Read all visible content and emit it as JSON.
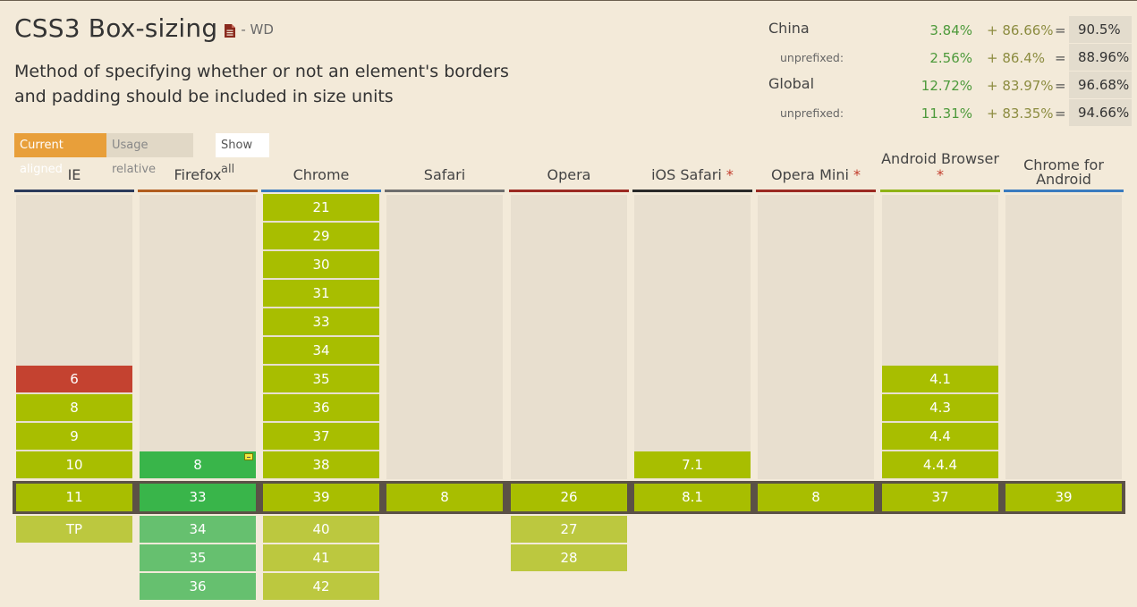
{
  "header": {
    "title": "CSS3 Box-sizing",
    "doc_icon": "document-icon",
    "status": "- WD",
    "description": "Method of specifying whether or not an element's borders and padding should be included in size units"
  },
  "stats": {
    "china": {
      "label": "China",
      "a": "3.84%",
      "b": "+ 86.66%",
      "eq": "=",
      "total": "90.5%"
    },
    "china_unprefixed": {
      "label": "unprefixed:",
      "a": "2.56%",
      "b": "+ 86.4%",
      "eq": "=",
      "total": "88.96%"
    },
    "global": {
      "label": "Global",
      "a": "12.72%",
      "b": "+ 83.97%",
      "eq": "=",
      "total": "96.68%"
    },
    "global_unprefixed": {
      "label": "unprefixed:",
      "a": "11.31%",
      "b": "+ 83.35%",
      "eq": "=",
      "total": "94.66%"
    }
  },
  "controls": {
    "current_aligned": "Current aligned",
    "usage_relative": "Usage relative",
    "show_all": "Show all"
  },
  "browsers": {
    "ie": {
      "name": "IE",
      "color": "#2b3b5b"
    },
    "firefox": {
      "name": "Firefox",
      "color": "#b15d1f"
    },
    "chrome": {
      "name": "Chrome",
      "color": "#3a7bbf"
    },
    "safari": {
      "name": "Safari",
      "color": "#6e6e6e"
    },
    "opera": {
      "name": "Opera",
      "color": "#9b2a22"
    },
    "ios_safari": {
      "name": "iOS Safari",
      "star": "*",
      "color": "#2a2a2a"
    },
    "opera_mini": {
      "name": "Opera Mini",
      "star": "*",
      "color": "#9b2a22"
    },
    "android": {
      "name": "Android Browser",
      "star": "*",
      "color": "#8fb316"
    },
    "chrome_android": {
      "name": "Chrome for Android",
      "color": "#3a7bbf"
    }
  },
  "versions": {
    "ie": {
      "past": [
        "6",
        "8",
        "9",
        "10"
      ],
      "current": "11",
      "future": [
        "TP"
      ]
    },
    "firefox": {
      "past": [
        "8"
      ],
      "current": "33",
      "future": [
        "34",
        "35",
        "36"
      ]
    },
    "chrome": {
      "past": [
        "21",
        "29",
        "30",
        "31",
        "33",
        "34",
        "35",
        "36",
        "37",
        "38"
      ],
      "current": "39",
      "future": [
        "40",
        "41",
        "42"
      ]
    },
    "safari": {
      "current": "8"
    },
    "opera": {
      "current": "26",
      "future": [
        "27",
        "28"
      ]
    },
    "ios_safari": {
      "past": [
        "7.1"
      ],
      "current": "8.1"
    },
    "opera_mini": {
      "current": "8"
    },
    "android": {
      "past": [
        "4.1",
        "4.3",
        "4.4",
        "4.4.4"
      ],
      "current": "37"
    },
    "chrome_android": {
      "current": "39"
    }
  },
  "support_colors": {
    "supported": "#a8be00",
    "prefixed": "#39b54a",
    "not_supported": "#c44230",
    "current_band": "#5b5146"
  }
}
